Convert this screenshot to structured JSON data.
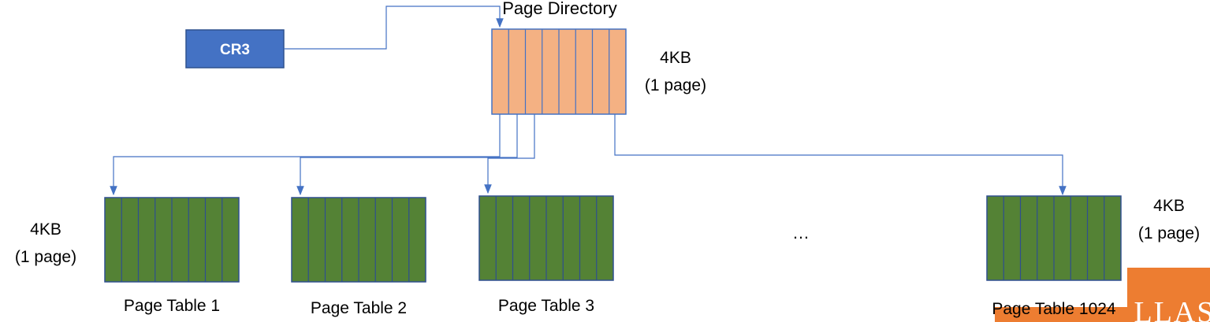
{
  "diagram": {
    "cr3_label": "CR3",
    "page_directory": {
      "title": "Page Directory",
      "size_label_line1": "4KB",
      "size_label_line2": "(1 page)"
    },
    "left_size": {
      "line1": "4KB",
      "line2": "(1 page)"
    },
    "right_size": {
      "line1": "4KB",
      "line2": "(1 page)"
    },
    "ellipsis": "…",
    "page_tables": [
      {
        "label": "Page Table 1"
      },
      {
        "label": "Page Table 2"
      },
      {
        "label": "Page Table 3"
      },
      {
        "label": "Page Table 1024"
      }
    ],
    "colors": {
      "cr3_fill": "#4472c4",
      "directory_fill": "#f4b183",
      "table_fill": "#548235",
      "arrow": "#4472c4",
      "logo": "#ed7d31",
      "outline": "#2f4f8f"
    },
    "icons": {
      "watermark": "corner-logo-watermark"
    }
  }
}
